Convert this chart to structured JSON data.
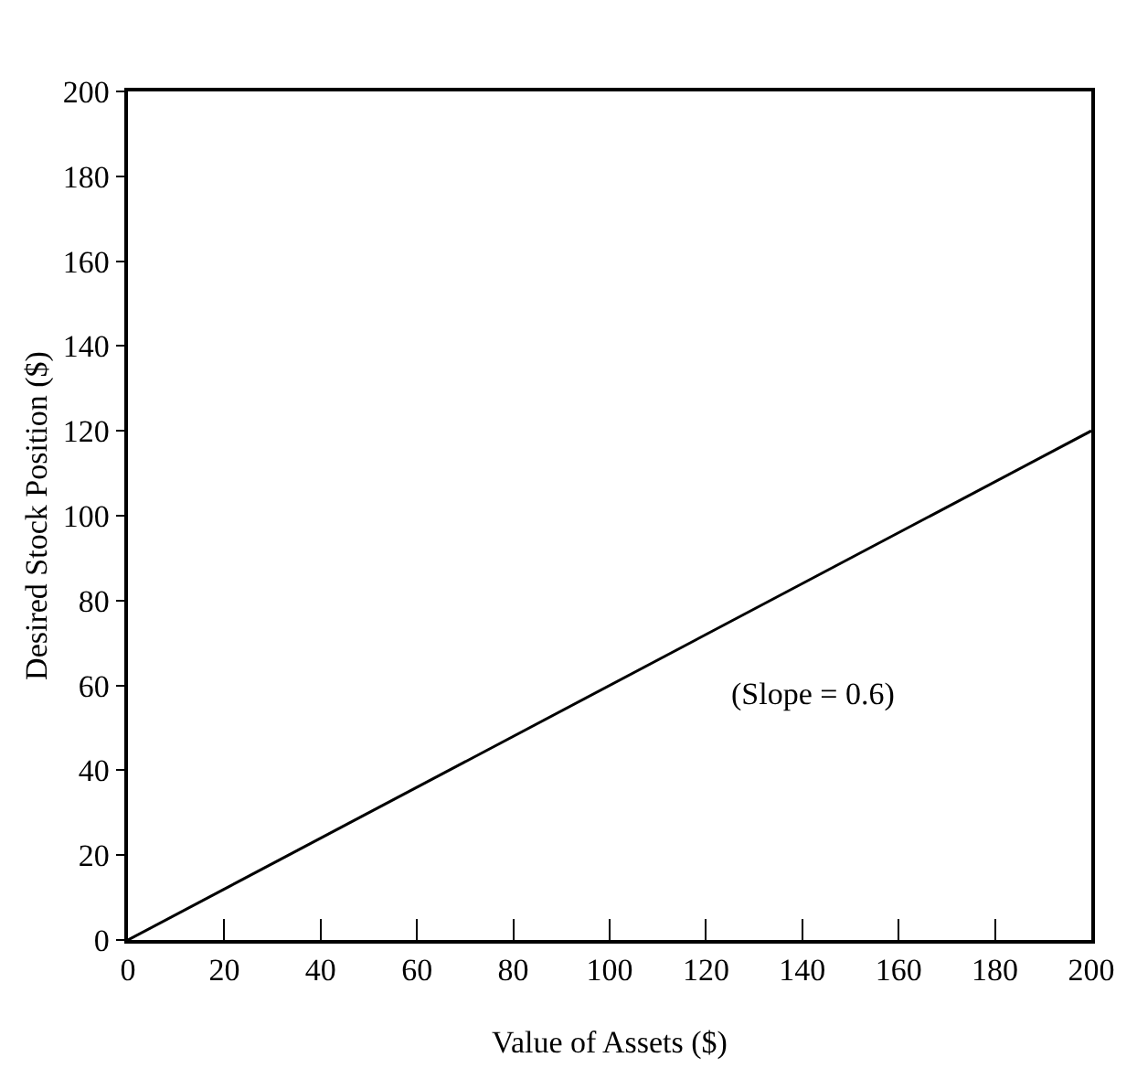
{
  "chart_data": {
    "type": "line",
    "xlabel": "Value of Assets ($)",
    "ylabel": "Desired Stock Position ($)",
    "x": [
      0,
      200
    ],
    "series": [
      {
        "color": "#000000",
        "values": [
          0,
          120
        ]
      }
    ],
    "xlim": [
      0,
      200
    ],
    "xticks": [
      0,
      20,
      40,
      60,
      80,
      100,
      120,
      140,
      160,
      180,
      200
    ],
    "ylim": [
      0,
      200
    ],
    "yticks": [
      0,
      20,
      40,
      60,
      80,
      100,
      120,
      140,
      160,
      180,
      200
    ],
    "annotations": [
      "(Slope = 0.6)"
    ],
    "marker": "none",
    "line_style": "solid"
  }
}
